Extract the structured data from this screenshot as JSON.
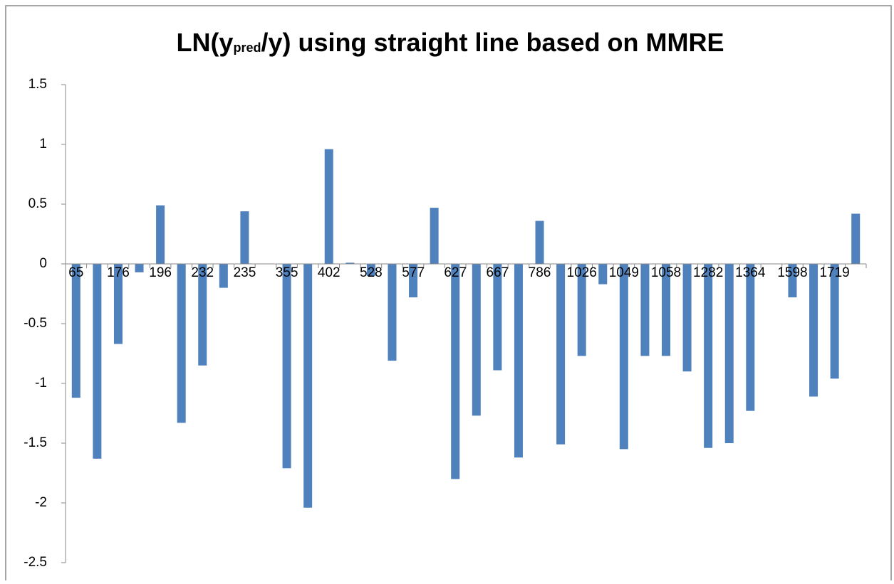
{
  "chart_data": {
    "type": "bar",
    "title": [
      "LN(y",
      "pred",
      "/y) using straight line based on MMRE"
    ],
    "categories": [
      "65",
      null,
      "176",
      null,
      "196",
      null,
      "232",
      null,
      "235",
      null,
      "355",
      null,
      "402",
      null,
      "528",
      null,
      "577",
      null,
      "627",
      null,
      "667",
      null,
      "786",
      null,
      "1026",
      null,
      "1049",
      null,
      "1058",
      null,
      "1282",
      null,
      "1364",
      null,
      "1598",
      null,
      "1719",
      null
    ],
    "values": [
      -1.12,
      -1.63,
      -0.67,
      -0.07,
      0.49,
      -1.33,
      -0.85,
      -0.2,
      0.44,
      0,
      -1.71,
      -2.04,
      0.96,
      0.01,
      -0.1,
      -0.81,
      -0.28,
      0.47,
      -1.8,
      -1.27,
      -0.89,
      -1.62,
      0.36,
      -1.51,
      -0.77,
      -0.17,
      -1.55,
      -0.77,
      -0.77,
      -0.9,
      -1.54,
      -1.5,
      -1.23,
      0,
      -0.28,
      -1.11,
      -0.96,
      0.42
    ],
    "color": "#4f81bd",
    "ylim": [
      -2.5,
      1.5
    ],
    "yticks": [
      -2.5,
      -2,
      -1.5,
      -1,
      -0.5,
      0,
      0.5,
      1,
      1.5
    ],
    "grid": false
  }
}
